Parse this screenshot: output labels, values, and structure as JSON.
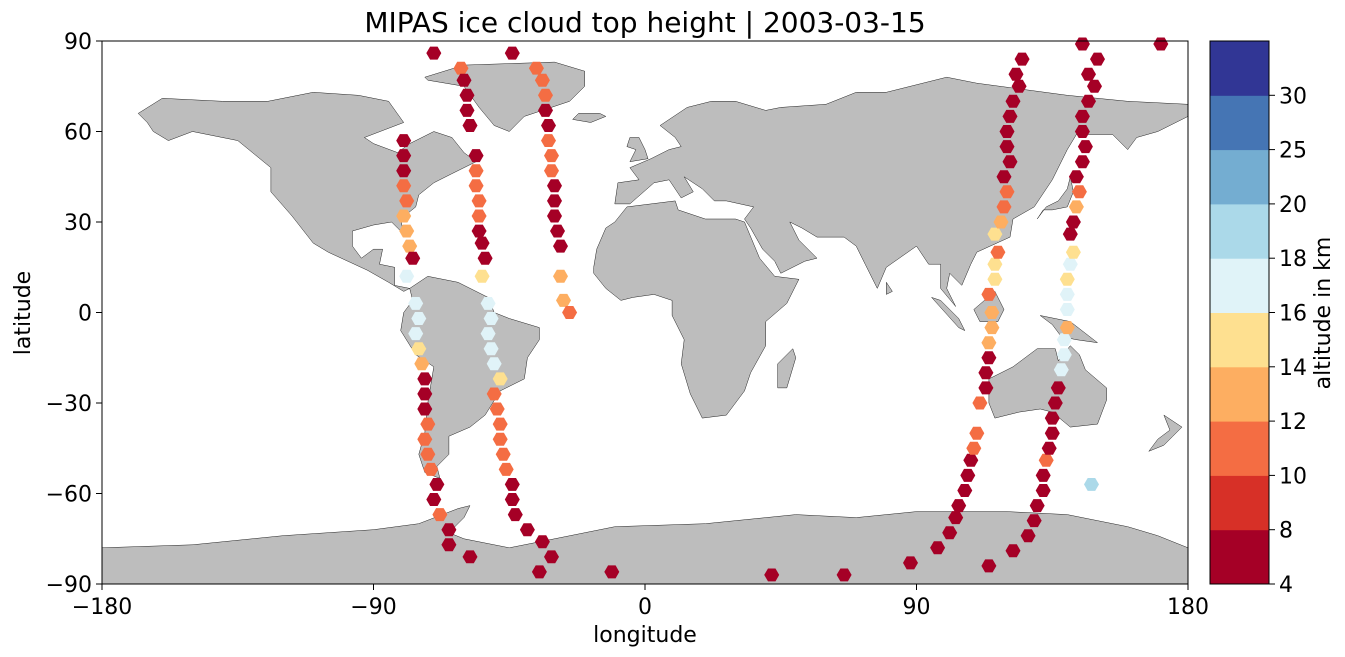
{
  "chart_data": {
    "type": "scatter",
    "title": "MIPAS ice cloud top height | 2003-03-15",
    "xlabel": "longitude",
    "ylabel": "latitude",
    "xlim": [
      -180,
      180
    ],
    "ylim": [
      -90,
      90
    ],
    "xticks": [
      -180,
      -90,
      0,
      90,
      180
    ],
    "xtick_labels": [
      "−180",
      "−90",
      "0",
      "90",
      "180"
    ],
    "yticks": [
      -90,
      -60,
      -30,
      0,
      30,
      60,
      90
    ],
    "ytick_labels": [
      "−90",
      "−60",
      "−30",
      "0",
      "30",
      "60",
      "90"
    ],
    "land_color": "#bdbdbd",
    "colorbar": {
      "label": "altitude in km",
      "bounds": [
        4,
        8,
        10,
        12,
        14,
        16,
        18,
        20,
        25,
        30
      ],
      "tick_labels": [
        "4",
        "8",
        "10",
        "12",
        "14",
        "16",
        "18",
        "20",
        "25",
        "30"
      ],
      "colors": [
        "#a50026",
        "#d73027",
        "#f46d43",
        "#fdae61",
        "#fee090",
        "#e0f3f8",
        "#abd9e9",
        "#74add1",
        "#4575b4",
        "#313695"
      ]
    },
    "points": [
      {
        "lon": -80,
        "lat": 57,
        "alt": 6
      },
      {
        "lon": -80,
        "lat": 52,
        "alt": 6
      },
      {
        "lon": -80,
        "lat": 47,
        "alt": 6
      },
      {
        "lon": -80,
        "lat": 42,
        "alt": 11
      },
      {
        "lon": -79,
        "lat": 37,
        "alt": 11
      },
      {
        "lon": -80,
        "lat": 32,
        "alt": 13
      },
      {
        "lon": -79,
        "lat": 27,
        "alt": 13
      },
      {
        "lon": -78,
        "lat": 22,
        "alt": 13
      },
      {
        "lon": -77,
        "lat": 18,
        "alt": 6
      },
      {
        "lon": -79,
        "lat": 12,
        "alt": 17
      },
      {
        "lon": -76,
        "lat": 3,
        "alt": 17
      },
      {
        "lon": -75,
        "lat": -2,
        "alt": 17
      },
      {
        "lon": -76,
        "lat": -7,
        "alt": 17
      },
      {
        "lon": -75,
        "lat": -12,
        "alt": 15
      },
      {
        "lon": -74,
        "lat": -17,
        "alt": 13
      },
      {
        "lon": -73,
        "lat": -22,
        "alt": 6
      },
      {
        "lon": -73,
        "lat": -27,
        "alt": 6
      },
      {
        "lon": -73,
        "lat": -32,
        "alt": 6
      },
      {
        "lon": -72,
        "lat": -37,
        "alt": 11
      },
      {
        "lon": -73,
        "lat": -42,
        "alt": 11
      },
      {
        "lon": -72,
        "lat": -47,
        "alt": 11
      },
      {
        "lon": -71,
        "lat": -52,
        "alt": 11
      },
      {
        "lon": -69,
        "lat": -57,
        "alt": 6
      },
      {
        "lon": -70,
        "lat": -62,
        "alt": 6
      },
      {
        "lon": -68,
        "lat": -67,
        "alt": 11
      },
      {
        "lon": -65,
        "lat": -72,
        "alt": 6
      },
      {
        "lon": -65,
        "lat": -77,
        "alt": 6
      },
      {
        "lon": -58,
        "lat": -81,
        "alt": 6
      },
      {
        "lon": -70,
        "lat": 86,
        "alt": 6
      },
      {
        "lon": -61,
        "lat": 81,
        "alt": 11
      },
      {
        "lon": -60,
        "lat": 77,
        "alt": 6
      },
      {
        "lon": -59,
        "lat": 72,
        "alt": 6
      },
      {
        "lon": -59,
        "lat": 67,
        "alt": 6
      },
      {
        "lon": -58,
        "lat": 62,
        "alt": 6
      },
      {
        "lon": -56,
        "lat": 52,
        "alt": 6
      },
      {
        "lon": -56,
        "lat": 47,
        "alt": 11
      },
      {
        "lon": -56,
        "lat": 42,
        "alt": 11
      },
      {
        "lon": -55,
        "lat": 37,
        "alt": 11
      },
      {
        "lon": -55,
        "lat": 32,
        "alt": 11
      },
      {
        "lon": -55,
        "lat": 27,
        "alt": 6
      },
      {
        "lon": -54,
        "lat": 23,
        "alt": 6
      },
      {
        "lon": -53,
        "lat": 18,
        "alt": 6
      },
      {
        "lon": -54,
        "lat": 12,
        "alt": 15
      },
      {
        "lon": -52,
        "lat": 3,
        "alt": 17
      },
      {
        "lon": -51,
        "lat": -2,
        "alt": 17
      },
      {
        "lon": -52,
        "lat": -7,
        "alt": 17
      },
      {
        "lon": -51,
        "lat": -12,
        "alt": 17
      },
      {
        "lon": -50,
        "lat": -17,
        "alt": 17
      },
      {
        "lon": -48,
        "lat": -22,
        "alt": 15
      },
      {
        "lon": -50,
        "lat": -27,
        "alt": 11
      },
      {
        "lon": -49,
        "lat": -32,
        "alt": 11
      },
      {
        "lon": -48,
        "lat": -37,
        "alt": 11
      },
      {
        "lon": -48,
        "lat": -42,
        "alt": 11
      },
      {
        "lon": -47,
        "lat": -47,
        "alt": 11
      },
      {
        "lon": -46,
        "lat": -52,
        "alt": 11
      },
      {
        "lon": -44,
        "lat": -57,
        "alt": 6
      },
      {
        "lon": -44,
        "lat": -62,
        "alt": 6
      },
      {
        "lon": -43,
        "lat": -67,
        "alt": 6
      },
      {
        "lon": -39,
        "lat": -72,
        "alt": 6
      },
      {
        "lon": -34,
        "lat": -76,
        "alt": 6
      },
      {
        "lon": -31,
        "lat": -81,
        "alt": 6
      },
      {
        "lon": -35,
        "lat": -86,
        "alt": 6
      },
      {
        "lon": -44,
        "lat": 86,
        "alt": 6
      },
      {
        "lon": -36,
        "lat": 81,
        "alt": 11
      },
      {
        "lon": -34,
        "lat": 77,
        "alt": 11
      },
      {
        "lon": -33,
        "lat": 72,
        "alt": 11
      },
      {
        "lon": -33,
        "lat": 67,
        "alt": 6
      },
      {
        "lon": -32,
        "lat": 62,
        "alt": 6
      },
      {
        "lon": -32,
        "lat": 57,
        "alt": 11
      },
      {
        "lon": -31,
        "lat": 52,
        "alt": 11
      },
      {
        "lon": -31,
        "lat": 47,
        "alt": 11
      },
      {
        "lon": -30,
        "lat": 42,
        "alt": 6
      },
      {
        "lon": -30,
        "lat": 37,
        "alt": 6
      },
      {
        "lon": -30,
        "lat": 32,
        "alt": 6
      },
      {
        "lon": -29,
        "lat": 27,
        "alt": 6
      },
      {
        "lon": -28,
        "lat": 22,
        "alt": 6
      },
      {
        "lon": -28,
        "lat": 12,
        "alt": 13
      },
      {
        "lon": -27,
        "lat": 4,
        "alt": 13
      },
      {
        "lon": -25,
        "lat": 0,
        "alt": 11
      },
      {
        "lon": -11,
        "lat": -86,
        "alt": 6
      },
      {
        "lon": 42,
        "lat": -87,
        "alt": 6
      },
      {
        "lon": 66,
        "lat": -87,
        "alt": 6
      },
      {
        "lon": 88,
        "lat": -83,
        "alt": 6
      },
      {
        "lon": 97,
        "lat": -78,
        "alt": 6
      },
      {
        "lon": 101,
        "lat": -73,
        "alt": 6
      },
      {
        "lon": 103,
        "lat": -68,
        "alt": 6
      },
      {
        "lon": 104,
        "lat": -64,
        "alt": 6
      },
      {
        "lon": 106,
        "lat": -59,
        "alt": 6
      },
      {
        "lon": 107,
        "lat": -54,
        "alt": 6
      },
      {
        "lon": 108,
        "lat": -49,
        "alt": 6
      },
      {
        "lon": 109,
        "lat": -45,
        "alt": 11
      },
      {
        "lon": 110,
        "lat": -40,
        "alt": 11
      },
      {
        "lon": 111,
        "lat": -30,
        "alt": 11
      },
      {
        "lon": 113,
        "lat": -25,
        "alt": 6
      },
      {
        "lon": 113,
        "lat": -20,
        "alt": 6
      },
      {
        "lon": 114,
        "lat": -15,
        "alt": 6
      },
      {
        "lon": 114,
        "lat": -10,
        "alt": 13
      },
      {
        "lon": 115,
        "lat": -5,
        "alt": 13
      },
      {
        "lon": 115,
        "lat": 0,
        "alt": 13
      },
      {
        "lon": 114,
        "lat": 6,
        "alt": 11
      },
      {
        "lon": 116,
        "lat": 11,
        "alt": 15
      },
      {
        "lon": 116,
        "lat": 16,
        "alt": 15
      },
      {
        "lon": 117,
        "lat": 20,
        "alt": 11
      },
      {
        "lon": 116,
        "lat": 26,
        "alt": 15
      },
      {
        "lon": 118,
        "lat": 30,
        "alt": 13
      },
      {
        "lon": 119,
        "lat": 35,
        "alt": 11
      },
      {
        "lon": 120,
        "lat": 40,
        "alt": 11
      },
      {
        "lon": 119,
        "lat": 45,
        "alt": 6
      },
      {
        "lon": 121,
        "lat": 50,
        "alt": 6
      },
      {
        "lon": 120,
        "lat": 55,
        "alt": 6
      },
      {
        "lon": 120,
        "lat": 60,
        "alt": 6
      },
      {
        "lon": 121,
        "lat": 65,
        "alt": 6
      },
      {
        "lon": 122,
        "lat": 70,
        "alt": 6
      },
      {
        "lon": 124,
        "lat": 75,
        "alt": 6
      },
      {
        "lon": 123,
        "lat": 79,
        "alt": 6
      },
      {
        "lon": 125,
        "lat": 84,
        "alt": 6
      },
      {
        "lon": 114,
        "lat": -84,
        "alt": 6
      },
      {
        "lon": 122,
        "lat": -79,
        "alt": 6
      },
      {
        "lon": 127,
        "lat": -74,
        "alt": 6
      },
      {
        "lon": 129,
        "lat": -69,
        "alt": 6
      },
      {
        "lon": 130,
        "lat": -64,
        "alt": 6
      },
      {
        "lon": 132,
        "lat": -59,
        "alt": 6
      },
      {
        "lon": 132,
        "lat": -54,
        "alt": 6
      },
      {
        "lon": 133,
        "lat": -49,
        "alt": 11
      },
      {
        "lon": 134,
        "lat": -45,
        "alt": 6
      },
      {
        "lon": 135,
        "lat": -40,
        "alt": 6
      },
      {
        "lon": 135,
        "lat": -35,
        "alt": 6
      },
      {
        "lon": 136,
        "lat": -30,
        "alt": 6
      },
      {
        "lon": 137,
        "lat": -25,
        "alt": 6
      },
      {
        "lon": 138,
        "lat": -19,
        "alt": 17
      },
      {
        "lon": 139,
        "lat": -14,
        "alt": 17
      },
      {
        "lon": 139,
        "lat": -9,
        "alt": 17
      },
      {
        "lon": 140,
        "lat": -5,
        "alt": 13
      },
      {
        "lon": 140,
        "lat": 1,
        "alt": 17
      },
      {
        "lon": 140,
        "lat": 6,
        "alt": 17
      },
      {
        "lon": 140,
        "lat": 11,
        "alt": 15
      },
      {
        "lon": 141,
        "lat": 16,
        "alt": 17
      },
      {
        "lon": 142,
        "lat": 20,
        "alt": 15
      },
      {
        "lon": 141,
        "lat": 26,
        "alt": 6
      },
      {
        "lon": 142,
        "lat": 30,
        "alt": 6
      },
      {
        "lon": 143,
        "lat": 35,
        "alt": 13
      },
      {
        "lon": 144,
        "lat": 40,
        "alt": 11
      },
      {
        "lon": 143,
        "lat": 45,
        "alt": 6
      },
      {
        "lon": 145,
        "lat": 50,
        "alt": 6
      },
      {
        "lon": 146,
        "lat": 55,
        "alt": 6
      },
      {
        "lon": 145,
        "lat": 60,
        "alt": 6
      },
      {
        "lon": 145,
        "lat": 65,
        "alt": 6
      },
      {
        "lon": 147,
        "lat": 70,
        "alt": 6
      },
      {
        "lon": 149,
        "lat": 75,
        "alt": 6
      },
      {
        "lon": 147,
        "lat": 79,
        "alt": 6
      },
      {
        "lon": 150,
        "lat": 84,
        "alt": 6
      },
      {
        "lon": 145,
        "lat": 89,
        "alt": 6
      },
      {
        "lon": 171,
        "lat": 89,
        "alt": 6
      },
      {
        "lon": 148,
        "lat": -57,
        "alt": 19
      }
    ]
  }
}
